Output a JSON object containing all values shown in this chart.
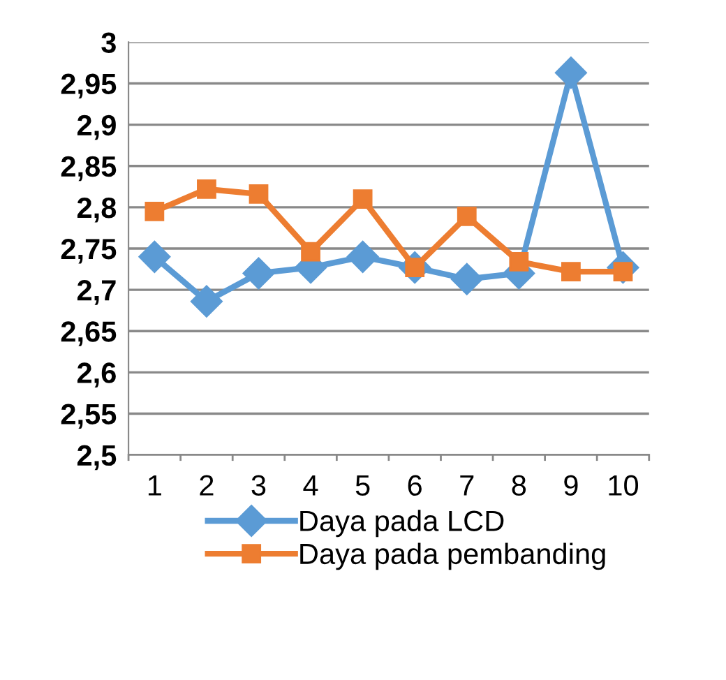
{
  "chart_data": {
    "type": "line",
    "categories": [
      "1",
      "2",
      "3",
      "4",
      "5",
      "6",
      "7",
      "8",
      "9",
      "10"
    ],
    "series": [
      {
        "name": "Daya pada LCD",
        "color": "#5b9bd5",
        "marker": "diamond",
        "values": [
          2.74,
          2.686,
          2.72,
          2.727,
          2.74,
          2.727,
          2.713,
          2.72,
          2.963,
          2.727
        ]
      },
      {
        "name": "Daya pada pembanding",
        "color": "#ed7d31",
        "marker": "square",
        "values": [
          2.795,
          2.822,
          2.816,
          2.746,
          2.81,
          2.727,
          2.789,
          2.734,
          2.722,
          2.722
        ]
      }
    ],
    "ylim": [
      2.5,
      3
    ],
    "yticks": [
      {
        "value": 2.5,
        "label": "2,5"
      },
      {
        "value": 2.55,
        "label": "2,55"
      },
      {
        "value": 2.6,
        "label": "2,6"
      },
      {
        "value": 2.65,
        "label": "2,65"
      },
      {
        "value": 2.7,
        "label": "2,7"
      },
      {
        "value": 2.75,
        "label": "2,75"
      },
      {
        "value": 2.8,
        "label": "2,8"
      },
      {
        "value": 2.85,
        "label": "2,85"
      },
      {
        "value": 2.9,
        "label": "2,9"
      },
      {
        "value": 2.95,
        "label": "2,95"
      },
      {
        "value": 3,
        "label": "3"
      }
    ],
    "grid": "y",
    "legend": "bottom"
  }
}
